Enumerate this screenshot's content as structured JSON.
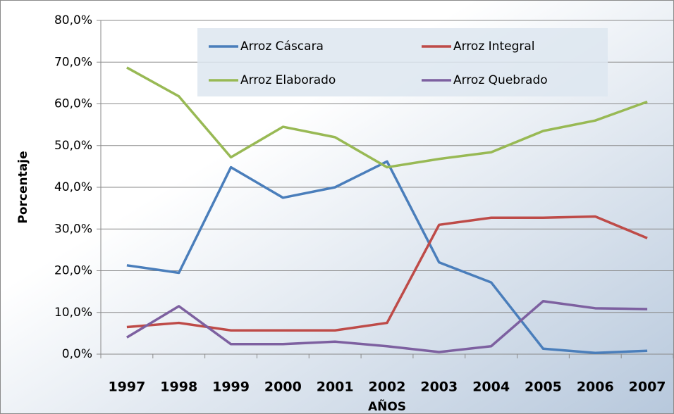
{
  "chart_data": {
    "type": "line",
    "x_label": "AÑOS",
    "y_label": "Porcentaje",
    "categories": [
      "1997",
      "1998",
      "1999",
      "2000",
      "2001",
      "2002",
      "2003",
      "2004",
      "2005",
      "2006",
      "2007"
    ],
    "series": [
      {
        "name": "Arroz Cáscara",
        "color": "#4a7ebb",
        "values": [
          21.3,
          19.5,
          44.8,
          37.5,
          40.0,
          46.2,
          22.0,
          17.2,
          1.3,
          0.3,
          0.8
        ]
      },
      {
        "name": "Arroz Integral",
        "color": "#be4b48",
        "values": [
          6.5,
          7.5,
          5.7,
          5.7,
          5.7,
          7.5,
          31.0,
          32.7,
          32.7,
          33.0,
          27.8
        ]
      },
      {
        "name": "Arroz Elaborado",
        "color": "#98b954",
        "values": [
          68.7,
          61.8,
          47.2,
          54.5,
          52.0,
          44.8,
          46.8,
          48.4,
          53.5,
          56.0,
          60.5
        ]
      },
      {
        "name": "Arroz Quebrado",
        "color": "#7d60a0",
        "values": [
          4.0,
          11.5,
          2.4,
          2.4,
          3.0,
          1.9,
          0.5,
          1.9,
          12.7,
          11.0,
          10.8
        ]
      }
    ],
    "ylim": [
      0,
      80
    ],
    "yticks": [
      {
        "value": 0,
        "label": "0,0%"
      },
      {
        "value": 10,
        "label": "10,0%"
      },
      {
        "value": 20,
        "label": "20,0%"
      },
      {
        "value": 30,
        "label": "30,0%"
      },
      {
        "value": 40,
        "label": "40,0%"
      },
      {
        "value": 50,
        "label": "50,0%"
      },
      {
        "value": 60,
        "label": "60,0%"
      },
      {
        "value": 70,
        "label": "70,0%"
      },
      {
        "value": 80,
        "label": "80,0%"
      }
    ],
    "grid": true,
    "legend": "top"
  }
}
